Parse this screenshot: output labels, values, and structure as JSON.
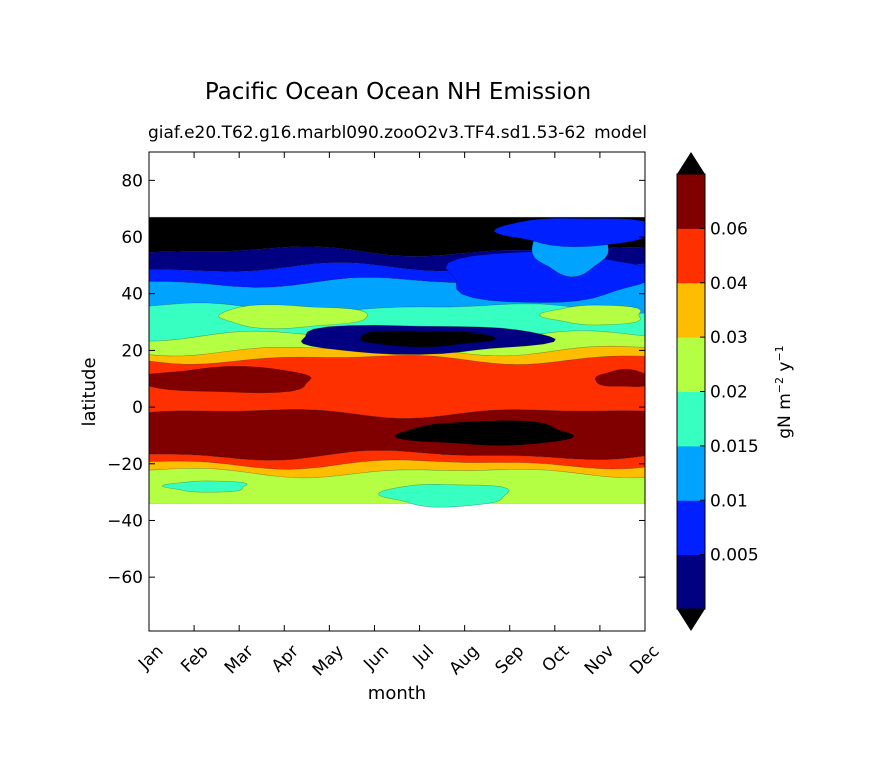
{
  "chart_data": {
    "type": "heatmap",
    "title": "Pacific Ocean Ocean NH Emission",
    "subtitle_left": "giaf.e20.T62.g16.marbl090.zooO2v3.TF4.sd1.53-62",
    "subtitle_right": "model",
    "xlabel": "month",
    "ylabel": "latitude",
    "x_categories": [
      "Jan",
      "Feb",
      "Mar",
      "Apr",
      "May",
      "Jun",
      "Jul",
      "Aug",
      "Sep",
      "Oct",
      "Nov",
      "Dec"
    ],
    "ylim": [
      -79,
      90
    ],
    "y_ticks": [
      80,
      60,
      40,
      20,
      0,
      -20,
      -40,
      -60
    ],
    "data_lat_range": [
      -34,
      67
    ],
    "colorbar": {
      "label_main": "gN m",
      "label_sup1": "−2",
      "label_mid": " y",
      "label_sup2": "−1",
      "levels": [
        0,
        0.005,
        0.01,
        0.015,
        0.02,
        0.03,
        0.04,
        0.06,
        0.07
      ],
      "tick_labels": [
        "0.005",
        "0.01",
        "0.015",
        "0.02",
        "0.03",
        "0.04",
        "0.06"
      ],
      "colors": [
        "#000080",
        "#0020ff",
        "#00a4ff",
        "#36ffc1",
        "#b4ff43",
        "#ffbd00",
        "#ff3000",
        "#800000"
      ],
      "under_color": "#000000",
      "over_color": "#000000"
    },
    "bands": [
      {
        "color": "#000000",
        "lat": [
          55,
          67
        ]
      },
      {
        "color": "#000080",
        "lat": [
          49,
          55
        ]
      },
      {
        "color": "#0020ff",
        "lat": [
          44,
          49
        ]
      },
      {
        "color": "#00a4ff",
        "lat": [
          35,
          44
        ]
      },
      {
        "color": "#36ffc1",
        "lat": [
          25,
          35
        ]
      },
      {
        "color": "#b4ff43",
        "lat": [
          20,
          25
        ]
      },
      {
        "color": "#ffbd00",
        "lat": [
          17,
          20
        ]
      },
      {
        "color": "#ff3000",
        "lat": [
          -2,
          17
        ]
      },
      {
        "color": "#800000",
        "lat": [
          -17,
          -2
        ]
      },
      {
        "color": "#ff3000",
        "lat": [
          -20,
          -17
        ]
      },
      {
        "color": "#ffbd00",
        "lat": [
          -23,
          -20
        ]
      },
      {
        "color": "#b4ff43",
        "lat": [
          -34,
          -23
        ]
      }
    ],
    "features": [
      {
        "color": "#000080",
        "month": [
          3.2,
          8.8
        ],
        "lat": [
          19,
          29
        ]
      },
      {
        "color": "#000000",
        "month": [
          4.6,
          7.6
        ],
        "lat": [
          21.5,
          27
        ]
      },
      {
        "color": "#0020ff",
        "month": [
          6.5,
          11.0
        ],
        "lat": [
          37,
          55
        ]
      },
      {
        "color": "#00a4ff",
        "month": [
          8.5,
          10.2
        ],
        "lat": [
          47,
          64
        ]
      },
      {
        "color": "#0020ff",
        "month": [
          7.8,
          11.2
        ],
        "lat": [
          57,
          67
        ]
      },
      {
        "color": "#b4ff43",
        "month": [
          1.5,
          4.8
        ],
        "lat": [
          28,
          36
        ]
      },
      {
        "color": "#b4ff43",
        "month": [
          8.8,
          11.0
        ],
        "lat": [
          29,
          36
        ]
      },
      {
        "color": "#800000",
        "month": [
          -0.2,
          3.7
        ],
        "lat": [
          5,
          14
        ]
      },
      {
        "color": "#800000",
        "month": [
          9.9,
          11.2
        ],
        "lat": [
          7,
          13
        ]
      },
      {
        "color": "#000000",
        "month": [
          5.6,
          9.4
        ],
        "lat": [
          -13.5,
          -5
        ]
      },
      {
        "color": "#36ffc1",
        "month": [
          0.4,
          2.2
        ],
        "lat": [
          -30,
          -26
        ]
      },
      {
        "color": "#36ffc1",
        "month": [
          5.2,
          8.0
        ],
        "lat": [
          -35,
          -27
        ]
      }
    ]
  }
}
